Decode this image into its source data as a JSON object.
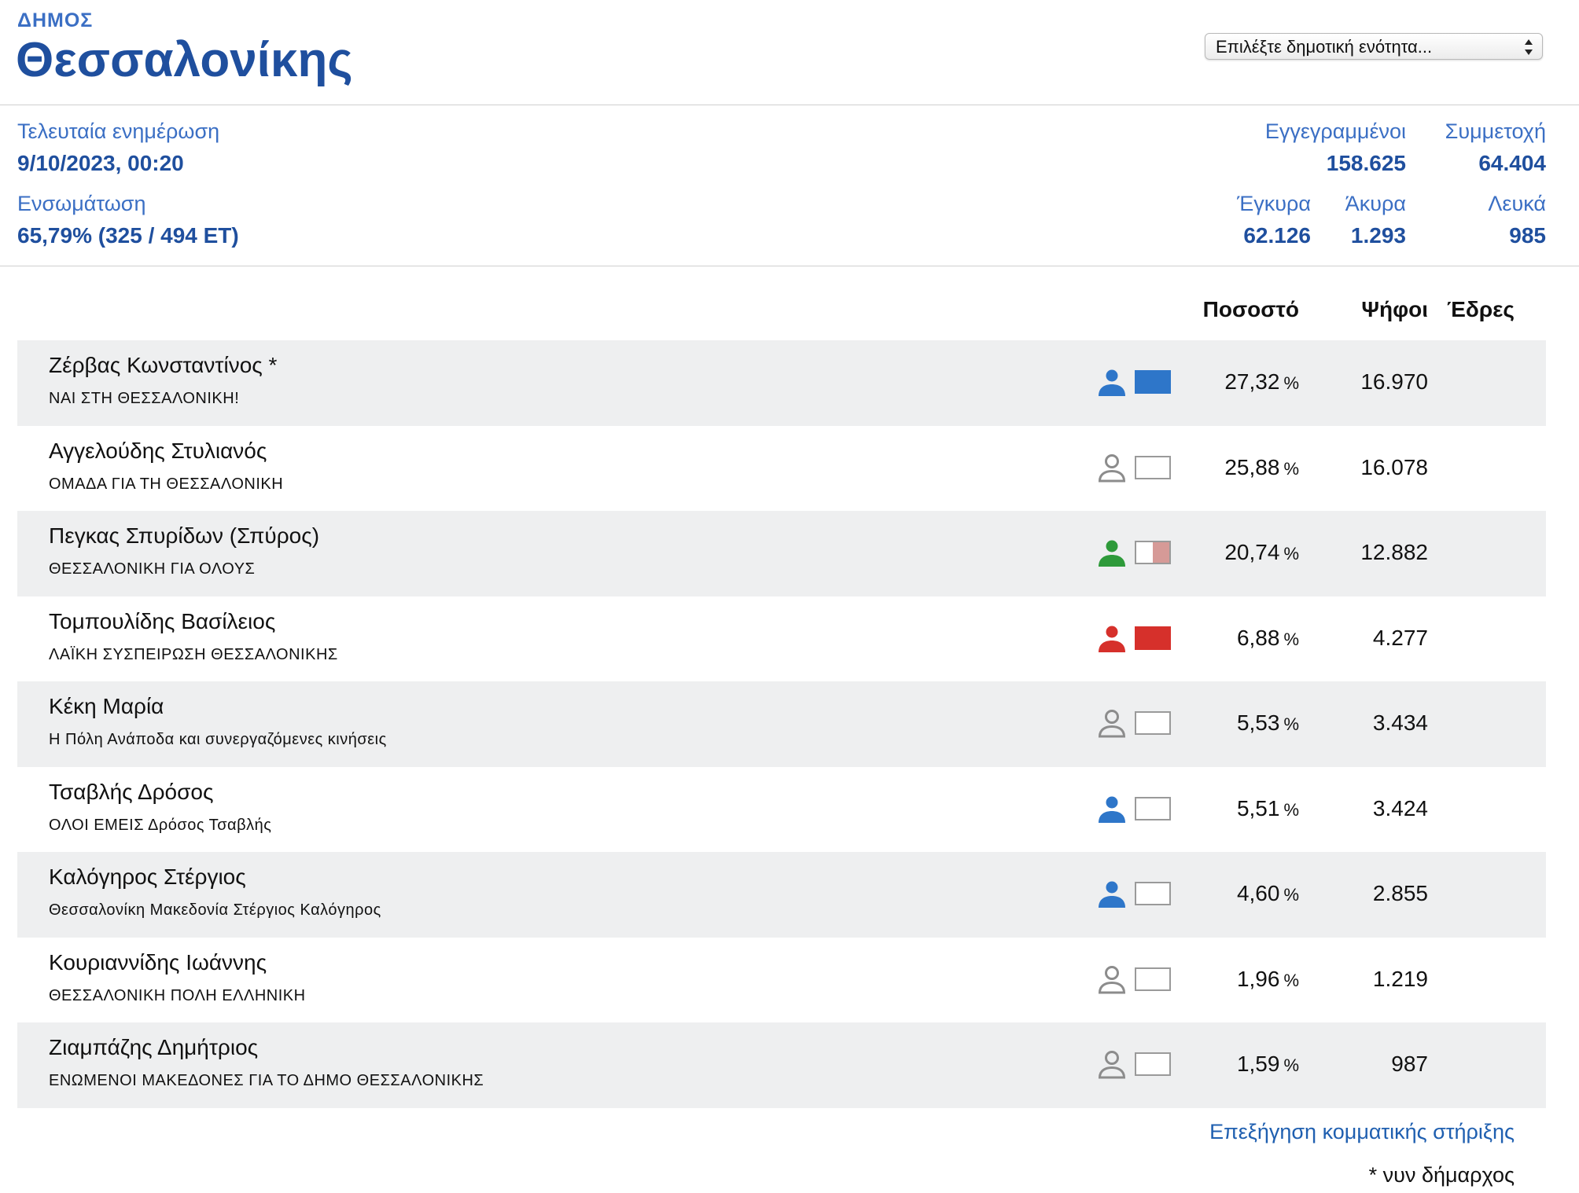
{
  "header": {
    "kind": "ΔΗΜΟΣ",
    "city": "Θεσσαλονίκης",
    "unit_select": "Επιλέξτε δημοτική ενότητα..."
  },
  "stats": {
    "last_update_label": "Τελευταία ενημέρωση",
    "last_update_value": "9/10/2023, 00:20",
    "incorporation_label": "Ενσωμάτωση",
    "incorporation_value": "65,79% (325 / 494 ΕΤ)",
    "registered_label": "Εγγεγραμμένοι",
    "registered_value": "158.625",
    "turnout_label": "Συμμετοχή",
    "turnout_value": "64.404",
    "valid_label": "Έγκυρα",
    "valid_value": "62.126",
    "invalid_label": "Άκυρα",
    "invalid_value": "1.293",
    "blank_label": "Λευκά",
    "blank_value": "985"
  },
  "table": {
    "col_percent": "Ποσοστό",
    "col_votes": "Ψήφοι",
    "col_seats": "Έδρες",
    "percent_unit": "%",
    "rows": [
      {
        "name": "Ζέρβας Κωνσταντίνος *",
        "party": "ΝΑΙ ΣΤΗ ΘΕΣΣΑΛΟΝΙΚΗ!",
        "percent": "27,32",
        "votes": "16.970",
        "person_color": "#2e76c9",
        "person_outline": false,
        "support": [
          {
            "color": "#2e76c9",
            "share": 1.0
          }
        ]
      },
      {
        "name": "Αγγελούδης Στυλιανός",
        "party": "ΟΜΑΔΑ ΓΙΑ ΤΗ ΘΕΣΣΑΛΟΝΙΚΗ",
        "percent": "25,88",
        "votes": "16.078",
        "person_color": "#8c8c8c",
        "person_outline": true,
        "support": []
      },
      {
        "name": "Πεγκας Σπυρίδων (Σπύρος)",
        "party": "ΘΕΣΣΑΛΟΝΙΚΗ ΓΙΑ ΟΛΟΥΣ",
        "percent": "20,74",
        "votes": "12.882",
        "person_color": "#2e9a3a",
        "person_outline": false,
        "support": [
          {
            "color": "#ffffff",
            "share": 0.5
          },
          {
            "color": "#d69a97",
            "share": 0.5
          }
        ]
      },
      {
        "name": "Τομπουλίδης Βασίλειος",
        "party": "ΛΑΪΚΗ ΣΥΣΠΕΙΡΩΣΗ ΘΕΣΣΑΛΟΝΙΚΗΣ",
        "percent": "6,88",
        "votes": "4.277",
        "person_color": "#d6302b",
        "person_outline": false,
        "support": [
          {
            "color": "#d6302b",
            "share": 1.0
          }
        ]
      },
      {
        "name": "Κέκη Μαρία",
        "party": "Η Πόλη Ανάποδα και συνεργαζόμενες κινήσεις",
        "percent": "5,53",
        "votes": "3.434",
        "person_color": "#8c8c8c",
        "person_outline": true,
        "support": []
      },
      {
        "name": "Τσαβλής Δρόσος",
        "party": "ΟΛΟΙ ΕΜΕΙΣ Δρόσος Τσαβλής",
        "percent": "5,51",
        "votes": "3.424",
        "person_color": "#2e76c9",
        "person_outline": false,
        "support": []
      },
      {
        "name": "Καλόγηρος Στέργιος",
        "party": "Θεσσαλονίκη Μακεδονία Στέργιος Καλόγηρος",
        "percent": "4,60",
        "votes": "2.855",
        "person_color": "#2e76c9",
        "person_outline": false,
        "support": []
      },
      {
        "name": "Κουριαννίδης Ιωάννης",
        "party": "ΘΕΣΣΑΛΟΝΙΚΗ ΠΟΛΗ ΕΛΛΗΝΙΚΗ",
        "percent": "1,96",
        "votes": "1.219",
        "person_color": "#8c8c8c",
        "person_outline": true,
        "support": []
      },
      {
        "name": "Ζιαμπάζης Δημήτριος",
        "party": "ΕΝΩΜΕΝΟΙ ΜΑΚΕΔΟΝΕΣ ΓΙΑ ΤΟ ΔΗΜΟ ΘΕΣΣΑΛΟΝΙΚΗΣ",
        "percent": "1,59",
        "votes": "987",
        "person_color": "#8c8c8c",
        "person_outline": true,
        "support": []
      }
    ]
  },
  "footer": {
    "support_link": "Επεξήγηση κομματικής στήριξης",
    "note": "* νυν δήμαρχος"
  }
}
